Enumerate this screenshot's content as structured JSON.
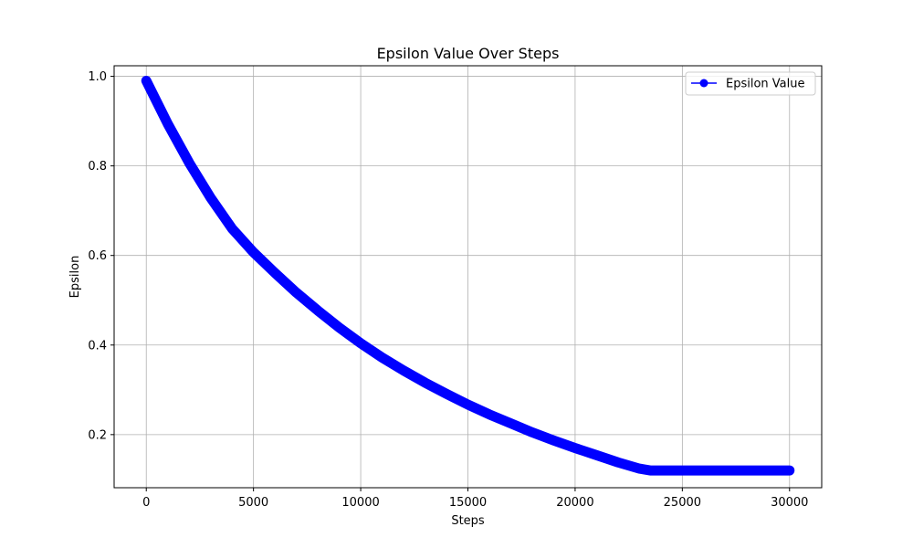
{
  "chart_data": {
    "type": "line",
    "title": "Epsilon Value Over Steps",
    "xlabel": "Steps",
    "ylabel": "Epsilon",
    "xlim": [
      -1500,
      31500
    ],
    "ylim": [
      0.0814,
      1.0236
    ],
    "xticks": [
      0,
      5000,
      10000,
      15000,
      20000,
      25000,
      30000
    ],
    "xtick_labels": [
      "0",
      "5000",
      "10000",
      "15000",
      "20000",
      "25000",
      "30000"
    ],
    "yticks": [
      0.2,
      0.4,
      0.6,
      0.8,
      1.0
    ],
    "ytick_labels": [
      "0.2",
      "0.4",
      "0.6",
      "0.8",
      "1.0"
    ],
    "grid": true,
    "legend_position": "top-right",
    "series": [
      {
        "name": "Epsilon Value",
        "color": "#0000ff",
        "marker": "circle",
        "x": [
          0,
          1000,
          2000,
          3000,
          4000,
          5000,
          6000,
          7000,
          8000,
          9000,
          10000,
          11000,
          12000,
          13000,
          14000,
          15000,
          16000,
          17000,
          18000,
          19000,
          20000,
          21000,
          22000,
          23000,
          23500,
          24000,
          25000,
          26000,
          27000,
          28000,
          29000,
          30000
        ],
        "y": [
          0.99,
          0.894,
          0.807,
          0.729,
          0.66,
          0.607,
          0.561,
          0.517,
          0.477,
          0.439,
          0.404,
          0.372,
          0.343,
          0.316,
          0.291,
          0.267,
          0.245,
          0.225,
          0.205,
          0.187,
          0.17,
          0.154,
          0.138,
          0.124,
          0.12,
          0.12,
          0.12,
          0.12,
          0.12,
          0.12,
          0.12,
          0.12
        ]
      }
    ]
  }
}
